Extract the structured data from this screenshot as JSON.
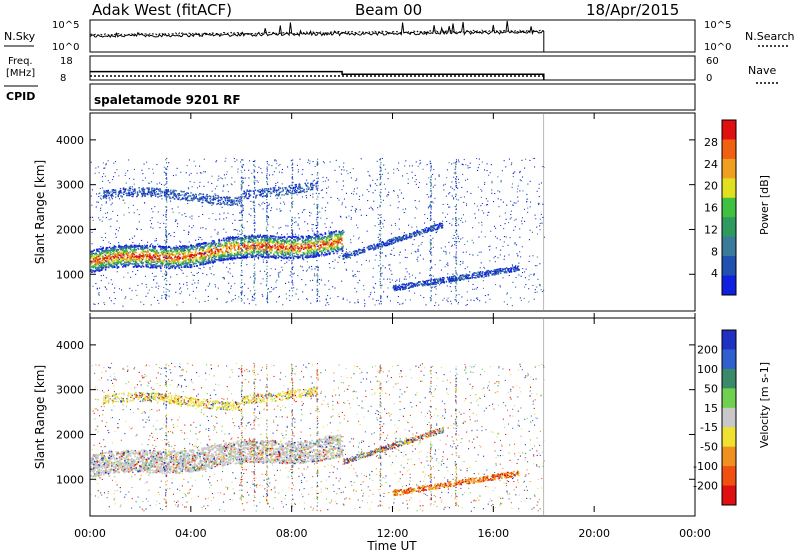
{
  "header": {
    "station": "Adak West (fitACF)",
    "beam": "Beam 00",
    "date": "18/Apr/2015"
  },
  "nsky_panel": {
    "left_label": "N.Sky",
    "right_label": "N.Search",
    "left_ticks": [
      "10^5",
      "10^0"
    ],
    "right_ticks": [
      "10^5",
      "10^0"
    ]
  },
  "freq_panel": {
    "left_label_line1": "Freq.",
    "left_label_line2": "[MHz]",
    "right_label": "Nave",
    "left_ticks": [
      "18",
      "8"
    ],
    "right_ticks": [
      "60",
      "0"
    ],
    "freq_steps": [
      {
        "t": 0,
        "v": 11.5
      },
      {
        "t": 10,
        "v": 11.5
      },
      {
        "t": 10,
        "v": 10.4
      },
      {
        "t": 18,
        "v": 10.4
      }
    ],
    "nave_level": 10
  },
  "cpid": {
    "label": "CPID",
    "mode": "spaletamode 9201 RF"
  },
  "x_axis": {
    "label": "Time UT",
    "ticks": [
      "00:00",
      "04:00",
      "08:00",
      "12:00",
      "16:00",
      "20:00",
      "00:00"
    ],
    "tick_hours": [
      0,
      4,
      8,
      12,
      16,
      20,
      24
    ],
    "range": [
      0,
      24
    ],
    "data_end": 18
  },
  "chart_data": [
    {
      "type": "heatmap",
      "title": "",
      "ylabel": "Slant Range [km]",
      "ylim": [
        180,
        4600
      ],
      "y_ticks": [
        "1000",
        "2000",
        "3000",
        "4000"
      ],
      "y_tick_values": [
        1000,
        2000,
        3000,
        4000
      ],
      "colorbar": {
        "label": "Power [dB]",
        "ticks": [
          "4",
          "8",
          "12",
          "16",
          "20",
          "24",
          "28"
        ],
        "colors": [
          "#1020e0",
          "#2050b0",
          "#3a7a9a",
          "#2e9a60",
          "#40c040",
          "#e0e020",
          "#f0a020",
          "#f06010",
          "#e01010"
        ]
      }
    },
    {
      "type": "heatmap",
      "title": "",
      "ylabel": "Slant Range [km]",
      "ylim": [
        180,
        4600
      ],
      "y_ticks": [
        "1000",
        "2000",
        "3000",
        "4000"
      ],
      "y_tick_values": [
        1000,
        2000,
        3000,
        4000
      ],
      "colorbar": {
        "label": "Velocity [m s-1]",
        "ticks": [
          "200",
          "100",
          "50",
          "15",
          "-15",
          "-50",
          "-100",
          "-200"
        ],
        "colors": [
          "#2030c0",
          "#3060d0",
          "#3a8a6a",
          "#70d050",
          "#c8c8c8",
          "#f0e030",
          "#f09020",
          "#f05010",
          "#e01010"
        ]
      }
    }
  ]
}
